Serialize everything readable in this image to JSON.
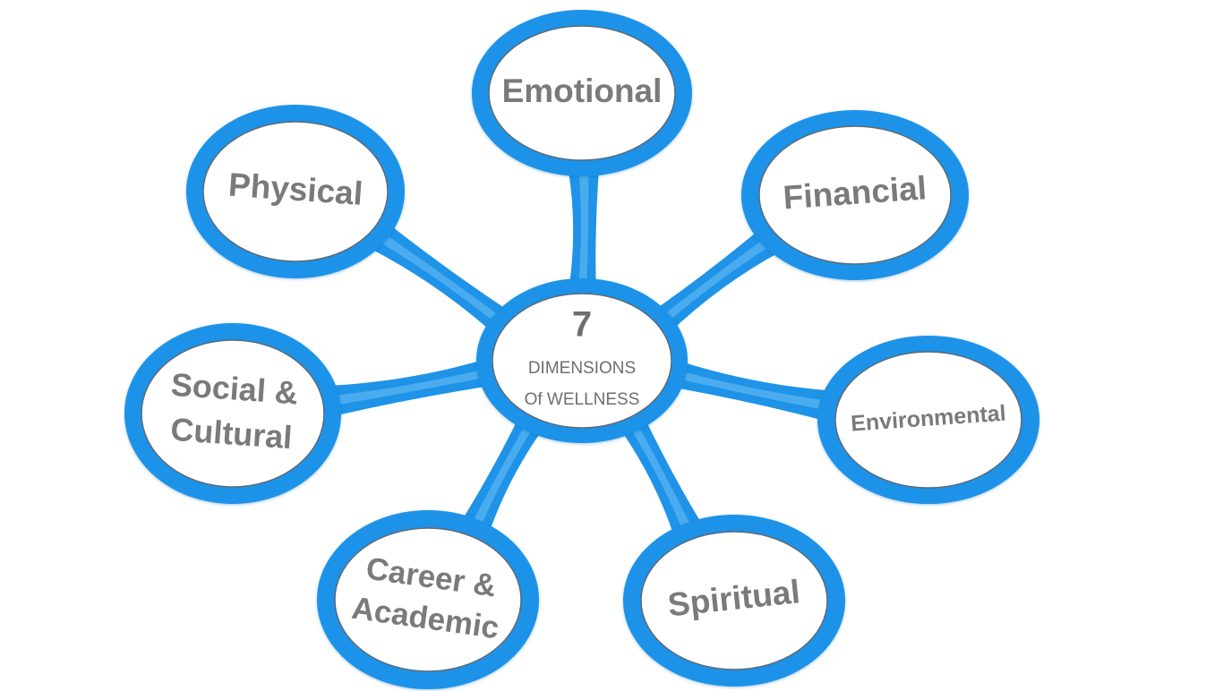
{
  "center": {
    "number": "7",
    "line1": "DIMENSIONS",
    "line2": "Of WELLNESS"
  },
  "dimensions": [
    {
      "key": "emotional",
      "lines": [
        "Emotional"
      ]
    },
    {
      "key": "financial",
      "lines": [
        "Financial"
      ]
    },
    {
      "key": "environmental",
      "lines": [
        "Environmental"
      ]
    },
    {
      "key": "spiritual",
      "lines": [
        "Spiritual"
      ]
    },
    {
      "key": "career",
      "lines": [
        "Career &",
        "Academic"
      ]
    },
    {
      "key": "social",
      "lines": [
        "Social &",
        "Cultural"
      ]
    },
    {
      "key": "physical",
      "lines": [
        "Physical"
      ]
    }
  ],
  "colors": {
    "ring": "#1e93e8",
    "ring_light": "#5db7f2",
    "fill": "#ffffff",
    "text": "#7a7a7a"
  }
}
